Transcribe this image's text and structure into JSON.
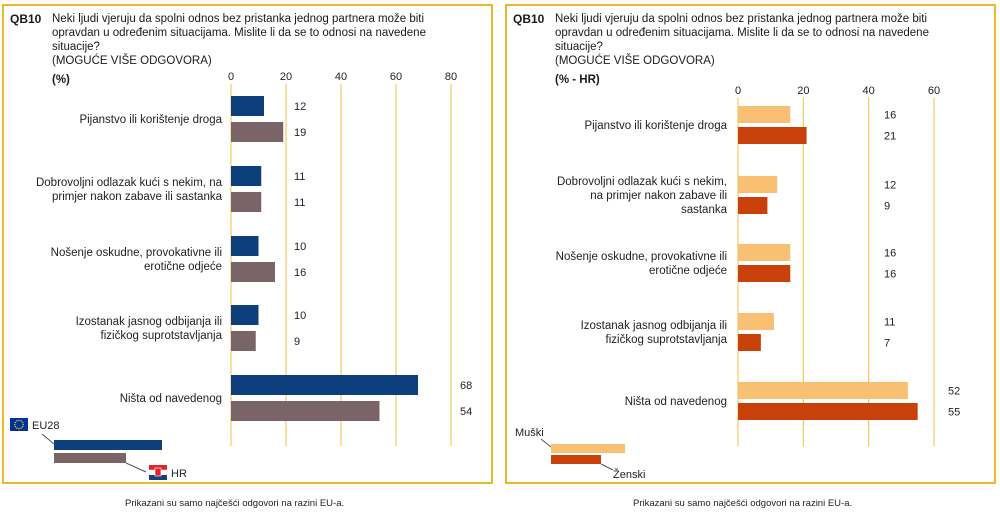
{
  "panels": [
    {
      "code": "QB10",
      "question": "Neki ljudi vjeruju da spolni odnos bez pristanka jednog partnera može biti opravdan u određenim situacijama. Mislite li da se to odnosi na navedene situacije?",
      "note": "(MOGUĆE VIŠE ODGOVORA)",
      "unit": "(%)",
      "footnote": "Prikazani su samo najčešći odgovori na razini EU-a."
    },
    {
      "code": "QB10",
      "question": "Neki ljudi vjeruju da spolni odnos bez pristanka jednog partnera može biti opravdan u određenim situacijama. Mislite li da se to odnosi na navedene situacije?",
      "note": "(MOGUĆE VIŠE ODGOVORA)",
      "unit": "(% - HR)",
      "footnote": "Prikazani su samo najčešći odgovori na razini EU-a."
    }
  ],
  "chart_data": [
    {
      "type": "bar",
      "orientation": "horizontal",
      "categories": [
        "Pijanstvo ili korištenje droga",
        "Dobrovoljni odlazak kući s nekim, na primjer nakon zabave ili sastanka",
        "Nošenje oskudne, provokativne ili erotične odjeće",
        "Izostanak jasnog odbijanja ili fizičkog suprotstavljanja",
        "Ništa od navedenog"
      ],
      "series": [
        {
          "name": "EU28",
          "values": [
            12,
            11,
            10,
            10,
            68
          ],
          "color": "#0c3f7c"
        },
        {
          "name": "HR",
          "values": [
            19,
            11,
            16,
            9,
            54
          ],
          "color": "#7a6467"
        }
      ],
      "xlim": [
        0,
        80
      ],
      "ticks": [
        0,
        20,
        40,
        60,
        80
      ],
      "grid": true,
      "legend_position": "bottom-left"
    },
    {
      "type": "bar",
      "orientation": "horizontal",
      "categories": [
        "Pijanstvo ili korištenje droga",
        "Dobrovoljni odlazak kući s nekim, na primjer nakon zabave ili sastanka",
        "Nošenje oskudne, provokativne ili erotične odjeće",
        "Izostanak jasnog odbijanja ili fizičkog suprotstavljanja",
        "Ništa od navedenog"
      ],
      "series": [
        {
          "name": "Muški",
          "values": [
            16,
            12,
            16,
            11,
            52
          ],
          "color": "#f9bf73"
        },
        {
          "name": "Ženski",
          "values": [
            21,
            9,
            16,
            7,
            55
          ],
          "color": "#c8400a"
        }
      ],
      "xlim": [
        0,
        60
      ],
      "ticks": [
        0,
        20,
        40,
        60
      ],
      "grid": true,
      "legend_position": "bottom-left"
    }
  ]
}
